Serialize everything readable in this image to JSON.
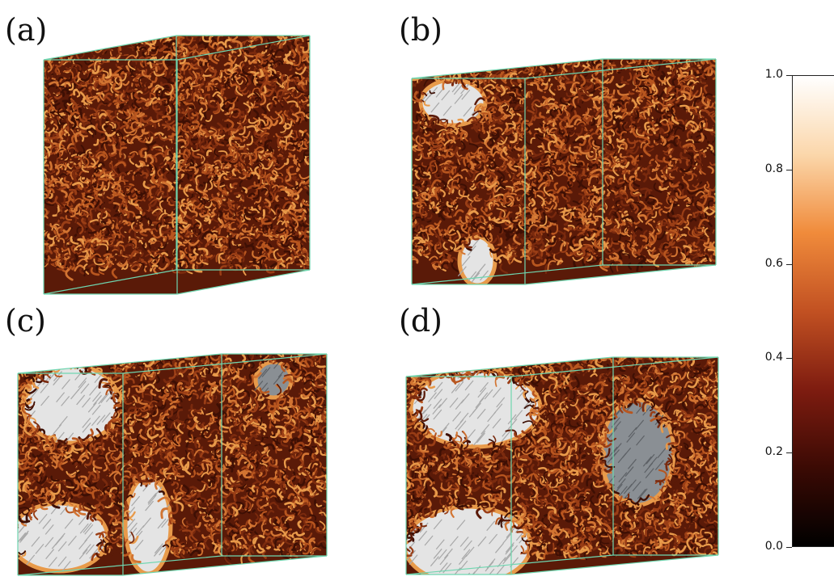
{
  "panels": [
    {
      "label": "(a)"
    },
    {
      "label": "(b)"
    },
    {
      "label": "(c)"
    },
    {
      "label": "(d)"
    }
  ],
  "colorbar": {
    "ticks": [
      "0.0",
      "0.2",
      "0.4",
      "0.6",
      "0.8",
      "1.0"
    ],
    "min": 0.0,
    "max": 1.0,
    "colormap_stops": [
      "#000000",
      "#3b0a04",
      "#7e1c10",
      "#c25122",
      "#f08b3b",
      "#fbd7ab",
      "#ffffff"
    ]
  },
  "colors": {
    "box_edge": "#6fd6b0",
    "fibre_dark": "#5a1a08",
    "fibre_mid": "#a0421a",
    "fibre_light": "#e89a4a",
    "ordered_domain": "#e4e4e4"
  }
}
